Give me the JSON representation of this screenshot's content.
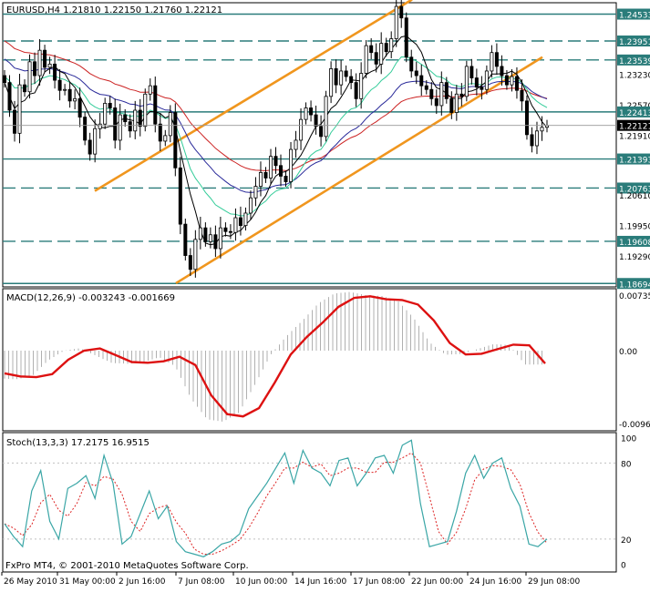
{
  "header": {
    "symbol_line": "EURUSD,H4  1.21810 1.22150 1.21760 1.22121",
    "macd_label": "MACD(12,26,9) -0.003243 -0.001669",
    "stoch_label": "Stoch(13,3,3) 17.2175 16.9515",
    "copyright": "FxPro MT4, © 2001-2010 MetaQuotes Software Corp."
  },
  "colors": {
    "background": "#ffffff",
    "candle": "#000000",
    "level_line": "#2a7c7a",
    "channel": "#f0961e",
    "ma_slow": "#cc2222",
    "ma_mid": "#2a2a9a",
    "ma_fast": "#33cc99",
    "ma_black": "#000000",
    "macd_hist": "#b0b0b0",
    "macd_signal": "#dd1111",
    "stoch_main": "#3aa6a6",
    "stoch_signal": "#dd2222",
    "current_price_bg": "#000000"
  },
  "chart_data": [
    {
      "type": "candlestick",
      "title": "EURUSD,H4",
      "ohlc_last": {
        "open": 1.2181,
        "high": 1.2215,
        "low": 1.2176,
        "close": 1.22121
      },
      "ylim": [
        1.1862,
        1.2478
      ],
      "y_tick_labels": [
        "1.24533",
        "1.23951",
        "1.23539",
        "1.23230",
        "1.22570",
        "1.22413",
        "1.22121",
        "1.21910",
        "1.21393",
        "1.20763",
        "1.20610",
        "1.19950",
        "1.19608",
        "1.19290",
        "1.18694"
      ],
      "x_tick_labels": [
        "26 May 2010",
        "31 May 00:00",
        "2 Jun 16:00",
        "7 Jun 08:00",
        "10 Jun 00:00",
        "14 Jun 16:00",
        "17 Jun 08:00",
        "22 Jun 00:00",
        "24 Jun 16:00",
        "29 Jun 08:00"
      ],
      "horizontal_levels": [
        {
          "value": 1.24533,
          "style": "solid"
        },
        {
          "value": 1.23951,
          "style": "dashed"
        },
        {
          "value": 1.23539,
          "style": "dashed"
        },
        {
          "value": 1.22413,
          "style": "solid"
        },
        {
          "value": 1.21393,
          "style": "solid"
        },
        {
          "value": 1.20763,
          "style": "dashed"
        },
        {
          "value": 1.19608,
          "style": "dashed"
        },
        {
          "value": 1.18694,
          "style": "solid"
        }
      ],
      "current_price": 1.22121,
      "close_series": [
        1.2305,
        1.2245,
        1.2195,
        1.23,
        1.2285,
        1.235,
        1.232,
        1.2375,
        1.2338,
        1.2345,
        1.231,
        1.2288,
        1.229,
        1.2265,
        1.227,
        1.223,
        1.218,
        1.215,
        1.2205,
        1.2215,
        1.226,
        1.225,
        1.218,
        1.2235,
        1.222,
        1.22,
        1.2245,
        1.221,
        1.228,
        1.2298,
        1.2215,
        1.2178,
        1.219,
        1.224,
        1.212,
        1.1998,
        1.193,
        1.19,
        1.1965,
        1.199,
        1.196,
        1.1975,
        1.1945,
        1.199,
        1.1982,
        1.198,
        1.2012,
        1.1995,
        1.2022,
        1.2055,
        1.208,
        1.211,
        1.2098,
        1.2145,
        1.2125,
        1.2102,
        1.209,
        1.216,
        1.218,
        1.2225,
        1.225,
        1.2235,
        1.221,
        1.2188,
        1.2275,
        1.2335,
        1.23,
        1.233,
        1.2318,
        1.2305,
        1.227,
        1.2325,
        1.2385,
        1.237,
        1.2345,
        1.239,
        1.2372,
        1.24,
        1.247,
        1.2445,
        1.236,
        1.233,
        1.232,
        1.2298,
        1.229,
        1.227,
        1.2255,
        1.2305,
        1.227,
        1.224,
        1.228,
        1.2275,
        1.234,
        1.2315,
        1.2295,
        1.229,
        1.233,
        1.237,
        1.234,
        1.232,
        1.23,
        1.2318,
        1.2288,
        1.2265,
        1.2192,
        1.2168,
        1.22,
        1.2208,
        1.2212
      ]
    },
    {
      "type": "line",
      "title": "MACD(12,26,9)",
      "values_shown": {
        "macd": -0.003243,
        "signal": -0.001669
      },
      "ylim": [
        -0.0106,
        0.0082
      ],
      "y_tick_labels": [
        "0.00735",
        "0.00",
        "-0.00962"
      ],
      "signal_points": [
        -0.003,
        -0.0034,
        -0.0035,
        -0.0031,
        -0.0012,
        0.0,
        0.0003,
        -0.0006,
        -0.0015,
        -0.0016,
        -0.0014,
        -0.0008,
        -0.0019,
        -0.0059,
        -0.0084,
        -0.0087,
        -0.0076,
        -0.0042,
        -0.0005,
        0.0018,
        0.0037,
        0.0058,
        0.007,
        0.0072,
        0.0068,
        0.0067,
        0.0061,
        0.004,
        0.001,
        -0.0005,
        -0.0004,
        0.0002,
        0.0008,
        0.0007,
        -0.0017
      ]
    },
    {
      "type": "line",
      "title": "Stoch(13,3,3)",
      "values_shown": {
        "main": 17.2175,
        "signal": 16.9515
      },
      "ylim": [
        -6,
        104
      ],
      "y_tick_labels": [
        "100",
        "80",
        "20",
        "0"
      ],
      "main_points": [
        32,
        22,
        14,
        58,
        74,
        34,
        20,
        60,
        64,
        70,
        52,
        86,
        64,
        16,
        22,
        40,
        58,
        36,
        46,
        18,
        10,
        8,
        6,
        10,
        16,
        18,
        24,
        44,
        54,
        64,
        76,
        88,
        64,
        90,
        76,
        72,
        62,
        82,
        84,
        62,
        72,
        84,
        86,
        72,
        94,
        98,
        48,
        14,
        16,
        18,
        42,
        72,
        86,
        68,
        80,
        84,
        60,
        46,
        16,
        14,
        20
      ]
    }
  ]
}
